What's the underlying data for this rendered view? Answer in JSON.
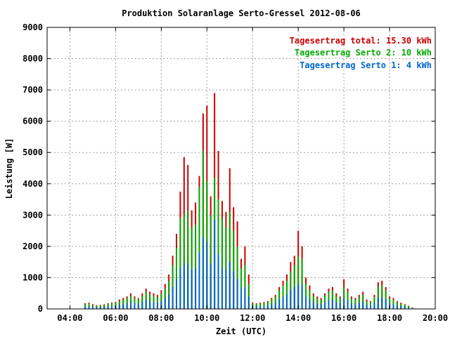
{
  "chart_data": {
    "type": "bar",
    "title": "Produktion Solaranlage Serto-Gressel 2012-08-06",
    "xlabel": "Zeit (UTC)",
    "ylabel": "Leistung [W]",
    "xlim": [
      "03:00",
      "20:00"
    ],
    "ylim": [
      0,
      9000
    ],
    "grid": true,
    "legend_position": "top-right",
    "x_ticks": [
      "04:00",
      "06:00",
      "08:00",
      "10:00",
      "12:00",
      "14:00",
      "16:00",
      "18:00",
      "20:00"
    ],
    "y_ticks": [
      0,
      1000,
      2000,
      3000,
      4000,
      5000,
      6000,
      7000,
      8000,
      9000
    ],
    "legend": [
      {
        "label": "Tagesertrag total: 15.30 kWh",
        "color": "#cc0000"
      },
      {
        "label": "Tagesertrag Serto 2: 10 kWh",
        "color": "#00aa00"
      },
      {
        "label": "Tagesertrag Serto 1: 4 kWh",
        "color": "#0066cc"
      }
    ],
    "series_colors": {
      "total": "#cc0000",
      "serto2": "#00aa00",
      "serto1": "#0066cc"
    },
    "x": [
      "04:40",
      "04:50",
      "05:00",
      "05:10",
      "05:20",
      "05:30",
      "05:40",
      "05:50",
      "06:00",
      "06:10",
      "06:20",
      "06:30",
      "06:40",
      "06:50",
      "07:00",
      "07:10",
      "07:20",
      "07:30",
      "07:40",
      "07:50",
      "08:00",
      "08:10",
      "08:20",
      "08:30",
      "08:40",
      "08:50",
      "09:00",
      "09:10",
      "09:20",
      "09:30",
      "09:40",
      "09:50",
      "10:00",
      "10:10",
      "10:20",
      "10:30",
      "10:40",
      "10:50",
      "11:00",
      "11:10",
      "11:20",
      "11:30",
      "11:40",
      "11:50",
      "12:00",
      "12:10",
      "12:20",
      "12:30",
      "12:40",
      "12:50",
      "13:00",
      "13:10",
      "13:20",
      "13:30",
      "13:40",
      "13:50",
      "14:00",
      "14:10",
      "14:20",
      "14:30",
      "14:40",
      "14:50",
      "15:00",
      "15:10",
      "15:20",
      "15:30",
      "15:40",
      "15:50",
      "16:00",
      "16:10",
      "16:20",
      "16:30",
      "16:40",
      "16:50",
      "17:00",
      "17:10",
      "17:20",
      "17:30",
      "17:40",
      "17:50",
      "18:00",
      "18:10",
      "18:20",
      "18:30",
      "18:40",
      "18:50",
      "19:00"
    ],
    "series": [
      {
        "name": "Tagesertrag total: 15.30 kWh",
        "key": "total",
        "values": [
          180,
          200,
          150,
          120,
          130,
          150,
          180,
          200,
          220,
          300,
          350,
          400,
          500,
          400,
          350,
          500,
          650,
          550,
          500,
          450,
          600,
          800,
          1100,
          1700,
          2400,
          3750,
          4850,
          4600,
          3150,
          3400,
          4250,
          6250,
          6500,
          3600,
          6900,
          5050,
          3450,
          3100,
          4500,
          3250,
          2800,
          1600,
          2000,
          1100,
          200,
          180,
          200,
          220,
          250,
          350,
          450,
          700,
          900,
          1100,
          1500,
          1700,
          2500,
          2000,
          1000,
          750,
          500,
          400,
          350,
          500,
          650,
          700,
          500,
          400,
          950,
          650,
          400,
          350,
          450,
          550,
          300,
          250,
          450,
          850,
          900,
          700,
          400,
          350,
          250,
          200,
          150,
          100,
          50
        ]
      },
      {
        "name": "Tagesertrag Serto 2: 10 kWh",
        "key": "serto2",
        "values": [
          150,
          170,
          120,
          100,
          110,
          130,
          150,
          170,
          190,
          250,
          300,
          340,
          420,
          340,
          300,
          420,
          550,
          470,
          420,
          380,
          500,
          650,
          900,
          1400,
          1950,
          2900,
          3000,
          3150,
          2600,
          2700,
          3900,
          5050,
          4100,
          3000,
          4200,
          3500,
          2900,
          2600,
          3100,
          2500,
          2000,
          1300,
          1400,
          800,
          170,
          150,
          170,
          190,
          210,
          300,
          380,
          600,
          750,
          900,
          1200,
          1400,
          1700,
          1600,
          800,
          600,
          420,
          340,
          300,
          420,
          550,
          600,
          420,
          340,
          700,
          550,
          340,
          300,
          380,
          460,
          250,
          210,
          380,
          700,
          750,
          600,
          340,
          300,
          210,
          170,
          130,
          90,
          40
        ]
      },
      {
        "name": "Tagesertrag Serto 1: 4 kWh",
        "key": "serto1",
        "values": [
          80,
          90,
          70,
          60,
          60,
          70,
          80,
          90,
          100,
          130,
          150,
          180,
          220,
          180,
          160,
          220,
          280,
          240,
          220,
          200,
          260,
          340,
          460,
          700,
          950,
          1300,
          1450,
          1450,
          1250,
          1300,
          1800,
          2300,
          2150,
          1450,
          2850,
          1750,
          1300,
          1250,
          1500,
          1200,
          950,
          650,
          700,
          400,
          90,
          80,
          90,
          100,
          110,
          150,
          190,
          300,
          380,
          460,
          600,
          700,
          800,
          750,
          400,
          300,
          210,
          170,
          150,
          210,
          280,
          300,
          210,
          170,
          350,
          280,
          170,
          150,
          190,
          230,
          130,
          110,
          190,
          350,
          380,
          300,
          170,
          150,
          110,
          90,
          70,
          50,
          20
        ]
      }
    ]
  }
}
